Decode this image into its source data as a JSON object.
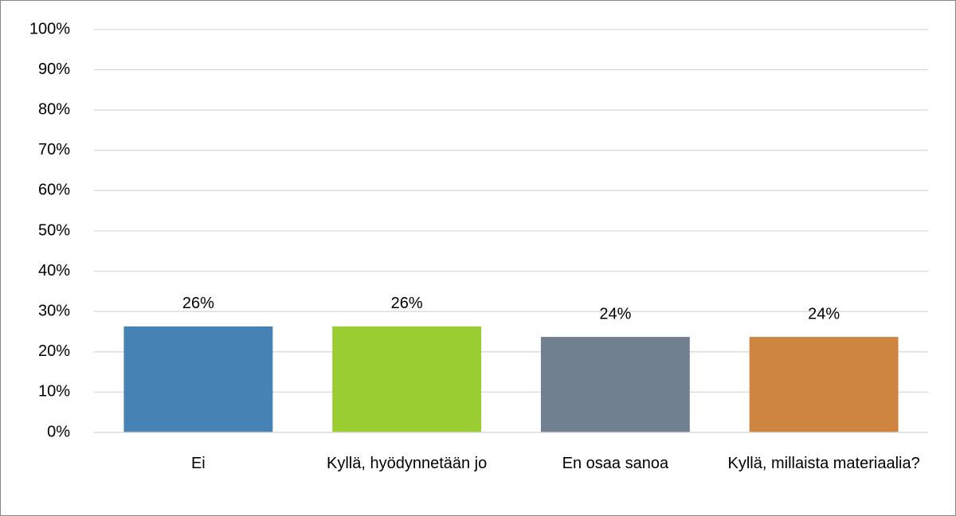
{
  "chart_data": {
    "type": "bar",
    "categories": [
      "Ei",
      "Kyllä, hyödynnetään jo",
      "En osaa sanoa",
      "Kyllä, millaista materiaalia?"
    ],
    "values": [
      26.3,
      26.3,
      23.7,
      23.7
    ],
    "value_labels": [
      "26%",
      "26%",
      "24%",
      "24%"
    ],
    "colors": [
      "#4682b4",
      "#9acd32",
      "#708090",
      "#cd853f"
    ],
    "ylim": [
      0,
      100
    ],
    "yticks": [
      {
        "value": 0,
        "label": "0%"
      },
      {
        "value": 10,
        "label": "10%"
      },
      {
        "value": 20,
        "label": "20%"
      },
      {
        "value": 30,
        "label": "30%"
      },
      {
        "value": 40,
        "label": "40%"
      },
      {
        "value": 50,
        "label": "50%"
      },
      {
        "value": 60,
        "label": "60%"
      },
      {
        "value": 70,
        "label": "70%"
      },
      {
        "value": 80,
        "label": "80%"
      },
      {
        "value": 90,
        "label": "90%"
      },
      {
        "value": 100,
        "label": "100%"
      }
    ],
    "grid": true
  }
}
